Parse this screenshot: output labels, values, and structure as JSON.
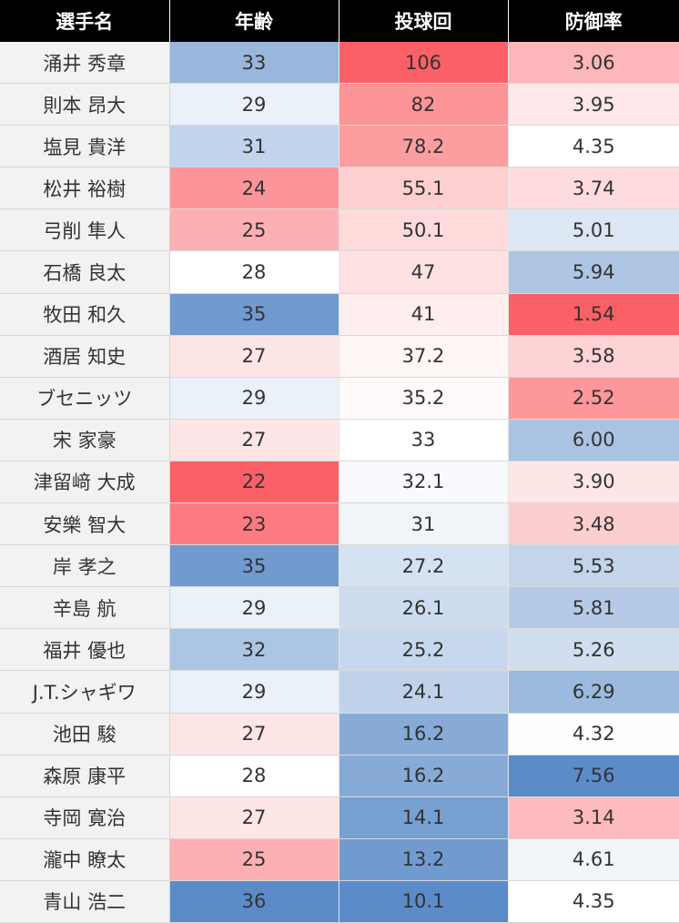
{
  "chart_data": {
    "type": "table",
    "columns": [
      "選手名",
      "年齢",
      "投球回",
      "防御率"
    ],
    "rows": [
      {
        "name": "涌井 秀章",
        "age": "33",
        "ip": "106",
        "era": "3.06"
      },
      {
        "name": "則本 昂大",
        "age": "29",
        "ip": "82",
        "era": "3.95"
      },
      {
        "name": "塩見 貴洋",
        "age": "31",
        "ip": "78.2",
        "era": "4.35"
      },
      {
        "name": "松井 裕樹",
        "age": "24",
        "ip": "55.1",
        "era": "3.74"
      },
      {
        "name": "弓削 隼人",
        "age": "25",
        "ip": "50.1",
        "era": "5.01"
      },
      {
        "name": "石橋 良太",
        "age": "28",
        "ip": "47",
        "era": "5.94"
      },
      {
        "name": "牧田 和久",
        "age": "35",
        "ip": "41",
        "era": "1.54"
      },
      {
        "name": "酒居 知史",
        "age": "27",
        "ip": "37.2",
        "era": "3.58"
      },
      {
        "name": "ブセニッツ",
        "age": "29",
        "ip": "35.2",
        "era": "2.52"
      },
      {
        "name": "宋 家豪",
        "age": "27",
        "ip": "33",
        "era": "6.00"
      },
      {
        "name": "津留﨑 大成",
        "age": "22",
        "ip": "32.1",
        "era": "3.90"
      },
      {
        "name": "安樂 智大",
        "age": "23",
        "ip": "31",
        "era": "3.48"
      },
      {
        "name": "岸 孝之",
        "age": "35",
        "ip": "27.2",
        "era": "5.53"
      },
      {
        "name": "辛島 航",
        "age": "29",
        "ip": "26.1",
        "era": "5.81"
      },
      {
        "name": "福井 優也",
        "age": "32",
        "ip": "25.2",
        "era": "5.26"
      },
      {
        "name": "J.T.シャギワ",
        "age": "29",
        "ip": "24.1",
        "era": "6.29"
      },
      {
        "name": "池田 駿",
        "age": "27",
        "ip": "16.2",
        "era": "4.32"
      },
      {
        "name": "森原 康平",
        "age": "28",
        "ip": "16.2",
        "era": "7.56"
      },
      {
        "name": "寺岡 寛治",
        "age": "27",
        "ip": "14.1",
        "era": "3.14"
      },
      {
        "name": "瀧中 瞭太",
        "age": "25",
        "ip": "13.2",
        "era": "4.61"
      },
      {
        "name": "青山 浩二",
        "age": "36",
        "ip": "10.1",
        "era": "4.35"
      }
    ],
    "color_scale": {
      "low": "#fa6066",
      "mid": "#ffffff",
      "high": "#5b8bc9",
      "age": {
        "min": 22,
        "mid": 28,
        "max": 36,
        "low_is": "red"
      },
      "ip": {
        "min": 10.1,
        "mid": 33,
        "max": 106,
        "low_is": "blue"
      },
      "era": {
        "min": 1.54,
        "mid": 4.35,
        "max": 7.56,
        "low_is": "red"
      }
    }
  }
}
